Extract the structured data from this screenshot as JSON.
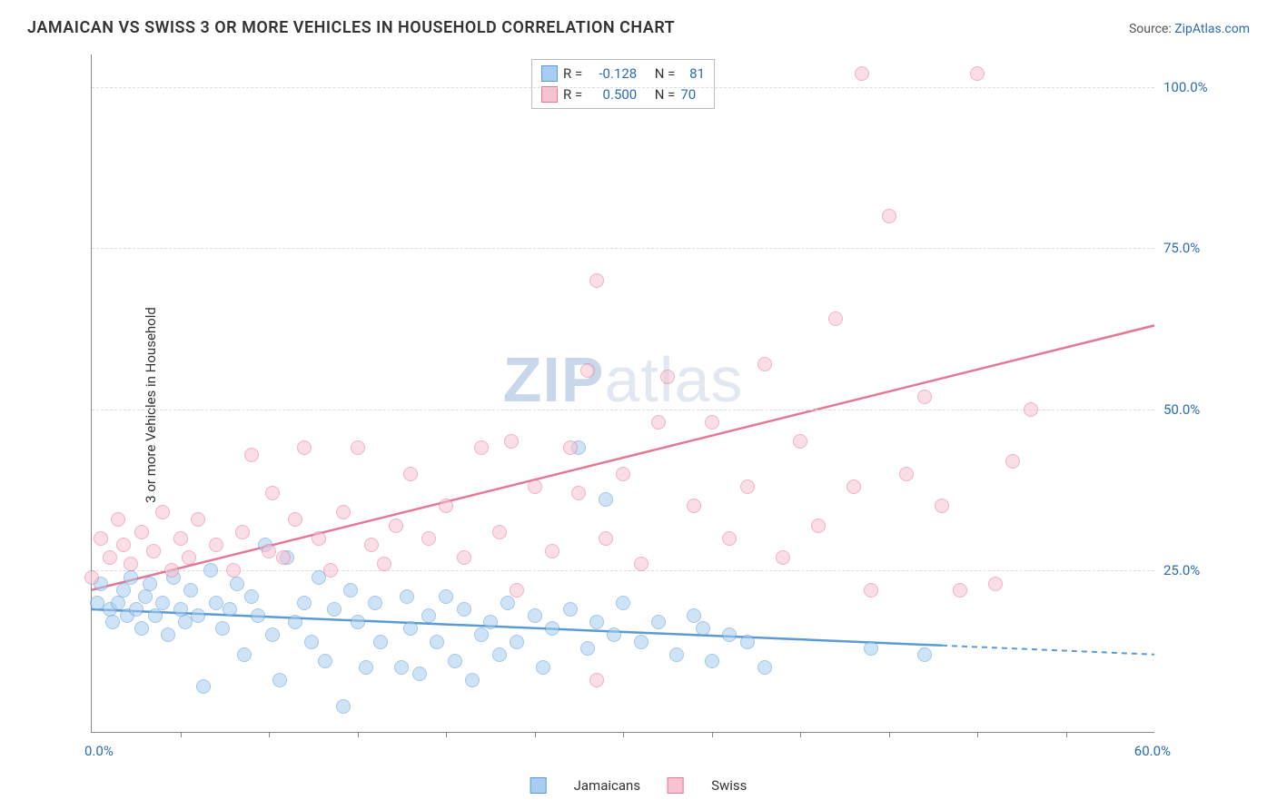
{
  "title": "JAMAICAN VS SWISS 3 OR MORE VEHICLES IN HOUSEHOLD CORRELATION CHART",
  "source_prefix": "Source: ",
  "source_link": "ZipAtlas.com",
  "ylabel": "3 or more Vehicles in Household",
  "watermark_bold": "ZIP",
  "watermark_rest": "atlas",
  "chart": {
    "type": "scatter",
    "xlim": [
      0,
      60
    ],
    "ylim": [
      0,
      105
    ],
    "yticks": [
      25,
      50,
      75,
      100
    ],
    "ytick_labels": [
      "25.0%",
      "50.0%",
      "75.0%",
      "100.0%"
    ],
    "xticks": [
      5,
      10,
      15,
      20,
      25,
      30,
      35,
      40,
      45,
      50,
      55
    ],
    "x_min_label": "0.0%",
    "x_max_label": "60.0%",
    "point_radius": 8,
    "point_opacity": 0.55,
    "background_color": "#ffffff",
    "grid_color": "#dddddd"
  },
  "series": [
    {
      "name": "Jamaicans",
      "color": "#5b9bd5",
      "fill": "#a8cdf0",
      "R": "-0.128",
      "N": "81",
      "trend": {
        "y_at_xmin": 19,
        "y_at_xmax": 12,
        "solid_until_x": 48
      },
      "points": [
        [
          0.3,
          20
        ],
        [
          0.5,
          23
        ],
        [
          1,
          19
        ],
        [
          1.2,
          17
        ],
        [
          1.5,
          20
        ],
        [
          1.8,
          22
        ],
        [
          2,
          18
        ],
        [
          2.2,
          24
        ],
        [
          2.5,
          19
        ],
        [
          2.8,
          16
        ],
        [
          3,
          21
        ],
        [
          3.3,
          23
        ],
        [
          3.6,
          18
        ],
        [
          4,
          20
        ],
        [
          4.3,
          15
        ],
        [
          4.6,
          24
        ],
        [
          5,
          19
        ],
        [
          5.3,
          17
        ],
        [
          5.6,
          22
        ],
        [
          6,
          18
        ],
        [
          6.3,
          7
        ],
        [
          6.7,
          25
        ],
        [
          7,
          20
        ],
        [
          7.4,
          16
        ],
        [
          7.8,
          19
        ],
        [
          8.2,
          23
        ],
        [
          8.6,
          12
        ],
        [
          9,
          21
        ],
        [
          9.4,
          18
        ],
        [
          9.8,
          29
        ],
        [
          10.2,
          15
        ],
        [
          10.6,
          8
        ],
        [
          11,
          27
        ],
        [
          11.5,
          17
        ],
        [
          12,
          20
        ],
        [
          12.4,
          14
        ],
        [
          12.8,
          24
        ],
        [
          13.2,
          11
        ],
        [
          13.7,
          19
        ],
        [
          14.2,
          4
        ],
        [
          14.6,
          22
        ],
        [
          15,
          17
        ],
        [
          15.5,
          10
        ],
        [
          16,
          20
        ],
        [
          16.3,
          14
        ],
        [
          17.5,
          10
        ],
        [
          17.8,
          21
        ],
        [
          18,
          16
        ],
        [
          18.5,
          9
        ],
        [
          19,
          18
        ],
        [
          19.5,
          14
        ],
        [
          20,
          21
        ],
        [
          20.5,
          11
        ],
        [
          21,
          19
        ],
        [
          21.5,
          8
        ],
        [
          22,
          15
        ],
        [
          22.5,
          17
        ],
        [
          23,
          12
        ],
        [
          23.5,
          20
        ],
        [
          24,
          14
        ],
        [
          25,
          18
        ],
        [
          25.5,
          10
        ],
        [
          26,
          16
        ],
        [
          27,
          19
        ],
        [
          27.5,
          44
        ],
        [
          28,
          13
        ],
        [
          28.5,
          17
        ],
        [
          29,
          36
        ],
        [
          29.5,
          15
        ],
        [
          30,
          20
        ],
        [
          31,
          14
        ],
        [
          32,
          17
        ],
        [
          33,
          12
        ],
        [
          34,
          18
        ],
        [
          34.5,
          16
        ],
        [
          35,
          11
        ],
        [
          36,
          15
        ],
        [
          37,
          14
        ],
        [
          38,
          10
        ],
        [
          44,
          13
        ],
        [
          47,
          12
        ]
      ]
    },
    {
      "name": "Swiss",
      "color": "#e37795",
      "fill": "#f8c2d0",
      "R": "0.500",
      "N": "70",
      "trend": {
        "y_at_xmin": 22,
        "y_at_xmax": 63,
        "solid_until_x": 60
      },
      "points": [
        [
          0,
          24
        ],
        [
          0.5,
          30
        ],
        [
          1,
          27
        ],
        [
          1.5,
          33
        ],
        [
          1.8,
          29
        ],
        [
          2.2,
          26
        ],
        [
          2.8,
          31
        ],
        [
          3.5,
          28
        ],
        [
          4,
          34
        ],
        [
          4.5,
          25
        ],
        [
          5,
          30
        ],
        [
          5.5,
          27
        ],
        [
          6,
          33
        ],
        [
          7,
          29
        ],
        [
          8,
          25
        ],
        [
          8.5,
          31
        ],
        [
          9,
          43
        ],
        [
          10,
          28
        ],
        [
          10.2,
          37
        ],
        [
          10.8,
          27
        ],
        [
          11.5,
          33
        ],
        [
          12,
          44
        ],
        [
          12.8,
          30
        ],
        [
          13.5,
          25
        ],
        [
          14.2,
          34
        ],
        [
          15,
          44
        ],
        [
          15.8,
          29
        ],
        [
          16.5,
          26
        ],
        [
          17.2,
          32
        ],
        [
          18,
          40
        ],
        [
          19,
          30
        ],
        [
          20,
          35
        ],
        [
          21,
          27
        ],
        [
          22,
          44
        ],
        [
          23,
          31
        ],
        [
          23.7,
          45
        ],
        [
          24,
          22
        ],
        [
          25,
          38
        ],
        [
          26,
          28
        ],
        [
          27,
          44
        ],
        [
          27.5,
          37
        ],
        [
          28,
          56
        ],
        [
          28.5,
          70
        ],
        [
          29,
          30
        ],
        [
          30,
          40
        ],
        [
          31,
          26
        ],
        [
          32,
          48
        ],
        [
          32.5,
          55
        ],
        [
          34,
          35
        ],
        [
          35,
          48
        ],
        [
          36,
          30
        ],
        [
          37,
          38
        ],
        [
          38,
          57
        ],
        [
          39,
          27
        ],
        [
          40,
          45
        ],
        [
          41,
          32
        ],
        [
          42,
          64
        ],
        [
          43,
          38
        ],
        [
          43.5,
          102
        ],
        [
          44,
          22
        ],
        [
          45,
          80
        ],
        [
          46,
          40
        ],
        [
          47,
          52
        ],
        [
          48,
          35
        ],
        [
          49,
          22
        ],
        [
          50,
          102
        ],
        [
          51,
          23
        ],
        [
          52,
          42
        ],
        [
          53,
          50
        ],
        [
          28.5,
          8
        ]
      ]
    }
  ],
  "stats_labels": {
    "R": "R =",
    "N": "N ="
  },
  "legend": {
    "series1": "Jamaicans",
    "series2": "Swiss"
  }
}
